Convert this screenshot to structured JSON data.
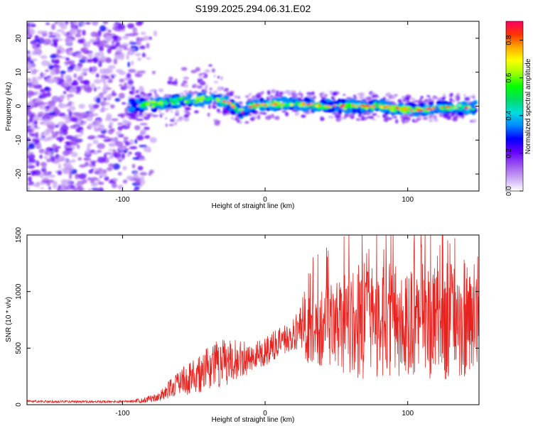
{
  "title": "S199.2025.294.06.31.E02",
  "chart_data": [
    {
      "type": "heatmap",
      "name": "spectrogram",
      "xlabel": "Height of straight line (km)",
      "ylabel": "Frequency (Hz)",
      "xlim": [
        -167,
        150
      ],
      "ylim": [
        -25,
        25
      ],
      "xticks": [
        -100,
        0,
        100
      ],
      "xtick_labels": [
        "-100",
        "0",
        "100"
      ],
      "yticks": [
        -20,
        -10,
        0,
        10,
        20
      ],
      "ytick_labels": [
        "-20",
        "-10",
        "0",
        "10",
        "20"
      ],
      "noise_region_x": [
        -167,
        -85
      ],
      "ridge": {
        "x": [
          -95,
          -80,
          -70,
          -60,
          -50,
          -40,
          -30,
          -25,
          -20,
          -15,
          -10,
          0,
          10,
          20,
          30,
          40,
          50,
          60,
          70,
          80,
          90,
          100,
          110,
          120,
          130,
          140,
          148
        ],
        "freq": [
          0,
          0.5,
          1,
          1.5,
          2,
          2,
          1.5,
          1,
          -1,
          -2,
          0,
          0.5,
          0.5,
          0.5,
          0.5,
          0,
          0,
          0,
          0,
          0,
          -0.5,
          -1,
          -1,
          -0.5,
          -0.5,
          -0.5,
          -0.5
        ]
      },
      "colorbar": {
        "label": "Normalized spectral amplitude",
        "range": [
          0,
          0.9
        ],
        "ticks": [
          0.0,
          0.2,
          0.4,
          0.6,
          0.8
        ],
        "tick_labels": [
          "0.0",
          "0.2",
          "0.4",
          "0.6",
          "0.8"
        ],
        "colors": [
          "#ffffff",
          "#c9a6f5",
          "#9a52ee",
          "#6600ff",
          "#0000ff",
          "#0088ff",
          "#00dddd",
          "#00dd66",
          "#00ff00",
          "#99ff00",
          "#ffff00",
          "#ffaa00",
          "#ff3300",
          "#ff0066"
        ]
      }
    },
    {
      "type": "line",
      "name": "snr",
      "xlabel": "Height of straight line (km)",
      "ylabel": "SNR (10 * v/v)",
      "xlim": [
        -167,
        150
      ],
      "ylim": [
        0,
        1500
      ],
      "xticks": [
        -100,
        0,
        100
      ],
      "xtick_labels": [
        "-100",
        "0",
        "100"
      ],
      "yticks": [
        0,
        500,
        1000,
        1500
      ],
      "ytick_labels": [
        "0",
        "500",
        "1000",
        "1500"
      ],
      "color": "#e8231f",
      "series": [
        {
          "name": "SNR",
          "x": [
            -167,
            -150,
            -130,
            -110,
            -95,
            -85,
            -78,
            -72,
            -66,
            -60,
            -54,
            -48,
            -42,
            -36,
            -30,
            -24,
            -18,
            -12,
            -6,
            0,
            6,
            12,
            18,
            24,
            30,
            40,
            50,
            60,
            70,
            80,
            90,
            100,
            110,
            120,
            130,
            140,
            150
          ],
          "y": [
            30,
            28,
            26,
            27,
            28,
            40,
            60,
            90,
            140,
            190,
            230,
            270,
            300,
            340,
            370,
            390,
            400,
            410,
            440,
            470,
            520,
            560,
            600,
            650,
            690,
            700,
            720,
            730,
            740,
            760,
            730,
            720,
            740,
            720,
            740,
            700,
            680
          ],
          "envelope": [
            10,
            10,
            10,
            10,
            10,
            25,
            35,
            55,
            90,
            110,
            150,
            170,
            190,
            220,
            220,
            200,
            160,
            150,
            140,
            130,
            130,
            130,
            140,
            200,
            320,
            360,
            420,
            480,
            520,
            560,
            500,
            480,
            520,
            500,
            520,
            460,
            420
          ]
        }
      ]
    }
  ]
}
